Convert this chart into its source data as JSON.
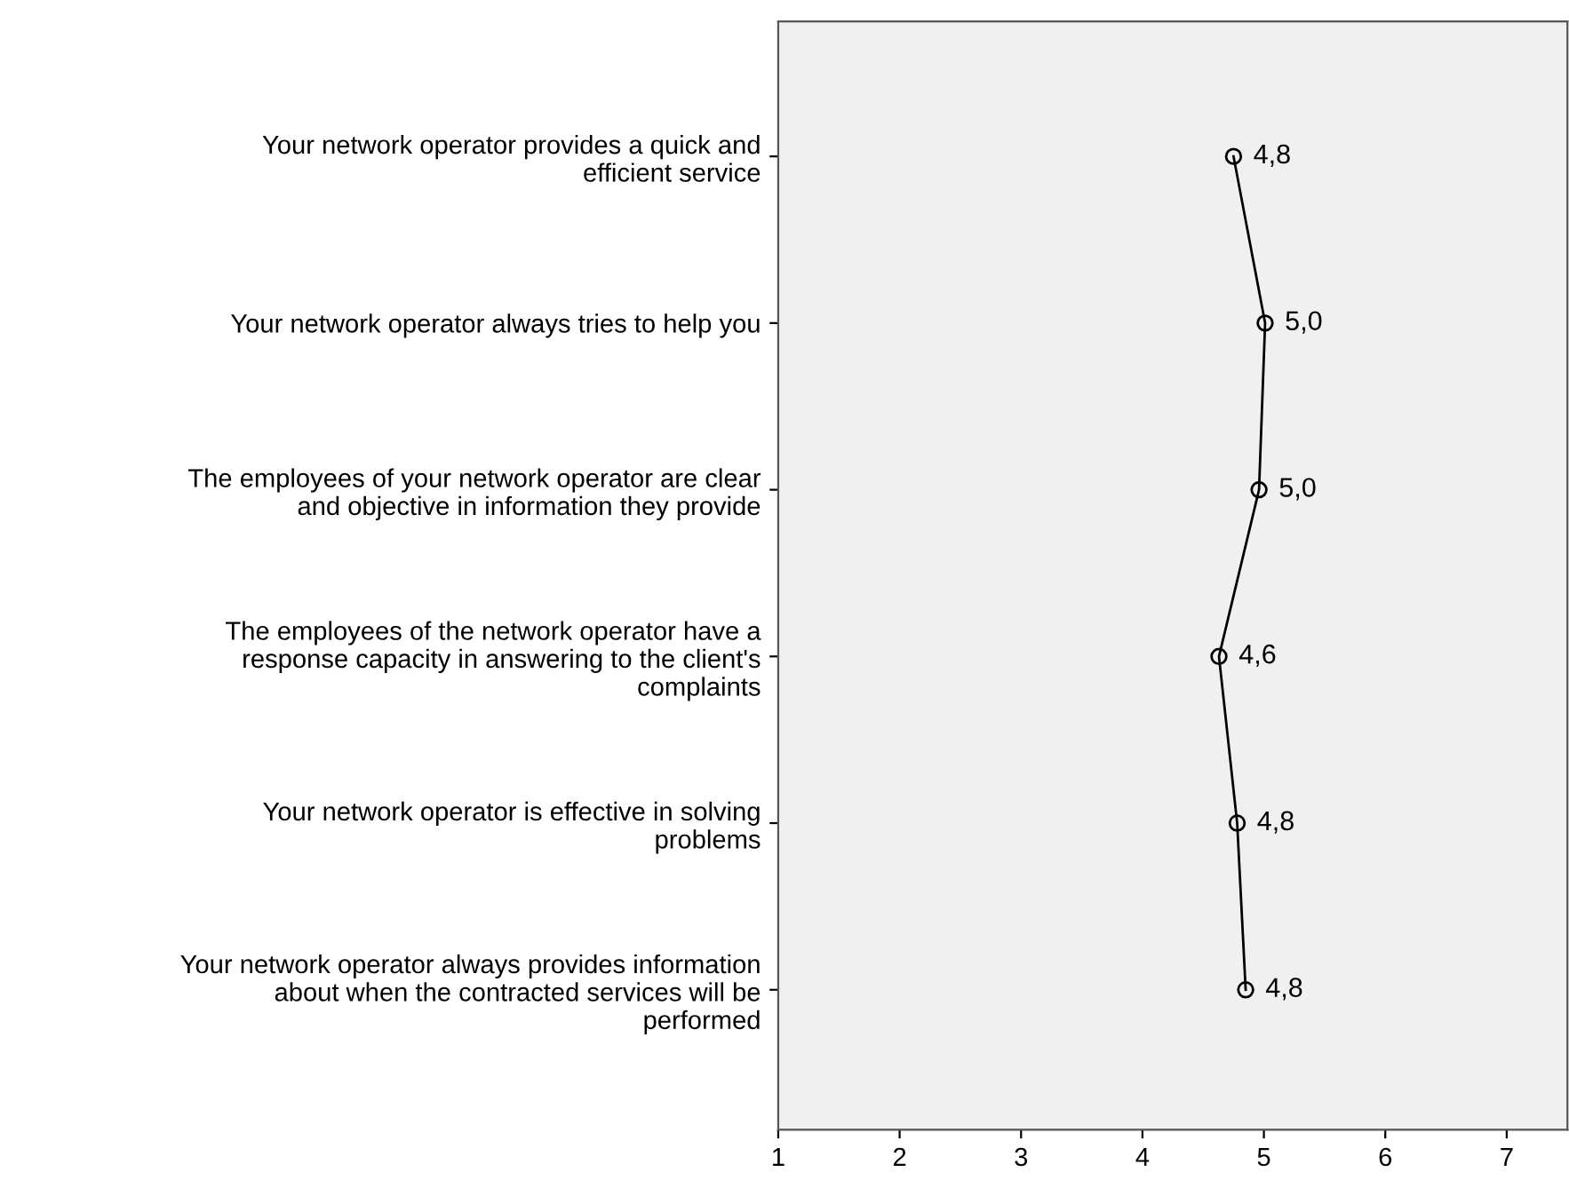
{
  "chart_data": {
    "type": "line",
    "orientation": "horizontal",
    "categories": [
      "Your network operator provides a quick and\nefficient service",
      "Your network operator always tries to help you",
      "The employees of your network operator are clear\nand objective in information they provide",
      "The employees of the network operator have a\nresponse capacity in answering to the client's\ncomplaints",
      "Your network operator is effective in solving\nproblems",
      "Your network operator always provides information\nabout when the contracted services will be\nperformed"
    ],
    "series": [
      {
        "color": "#000000",
        "values": [
          4.75,
          5.01,
          4.96,
          4.63,
          4.78,
          4.85
        ],
        "value_labels": [
          "4,8",
          "5,0",
          "5,0",
          "4,6",
          "4,8",
          "4,8"
        ]
      }
    ],
    "xlim": [
      1,
      7.5
    ],
    "xticks": [
      1,
      2,
      3,
      4,
      5,
      6,
      7
    ],
    "grid": false,
    "legend": false,
    "marker": "circle",
    "line_style": "solid"
  }
}
